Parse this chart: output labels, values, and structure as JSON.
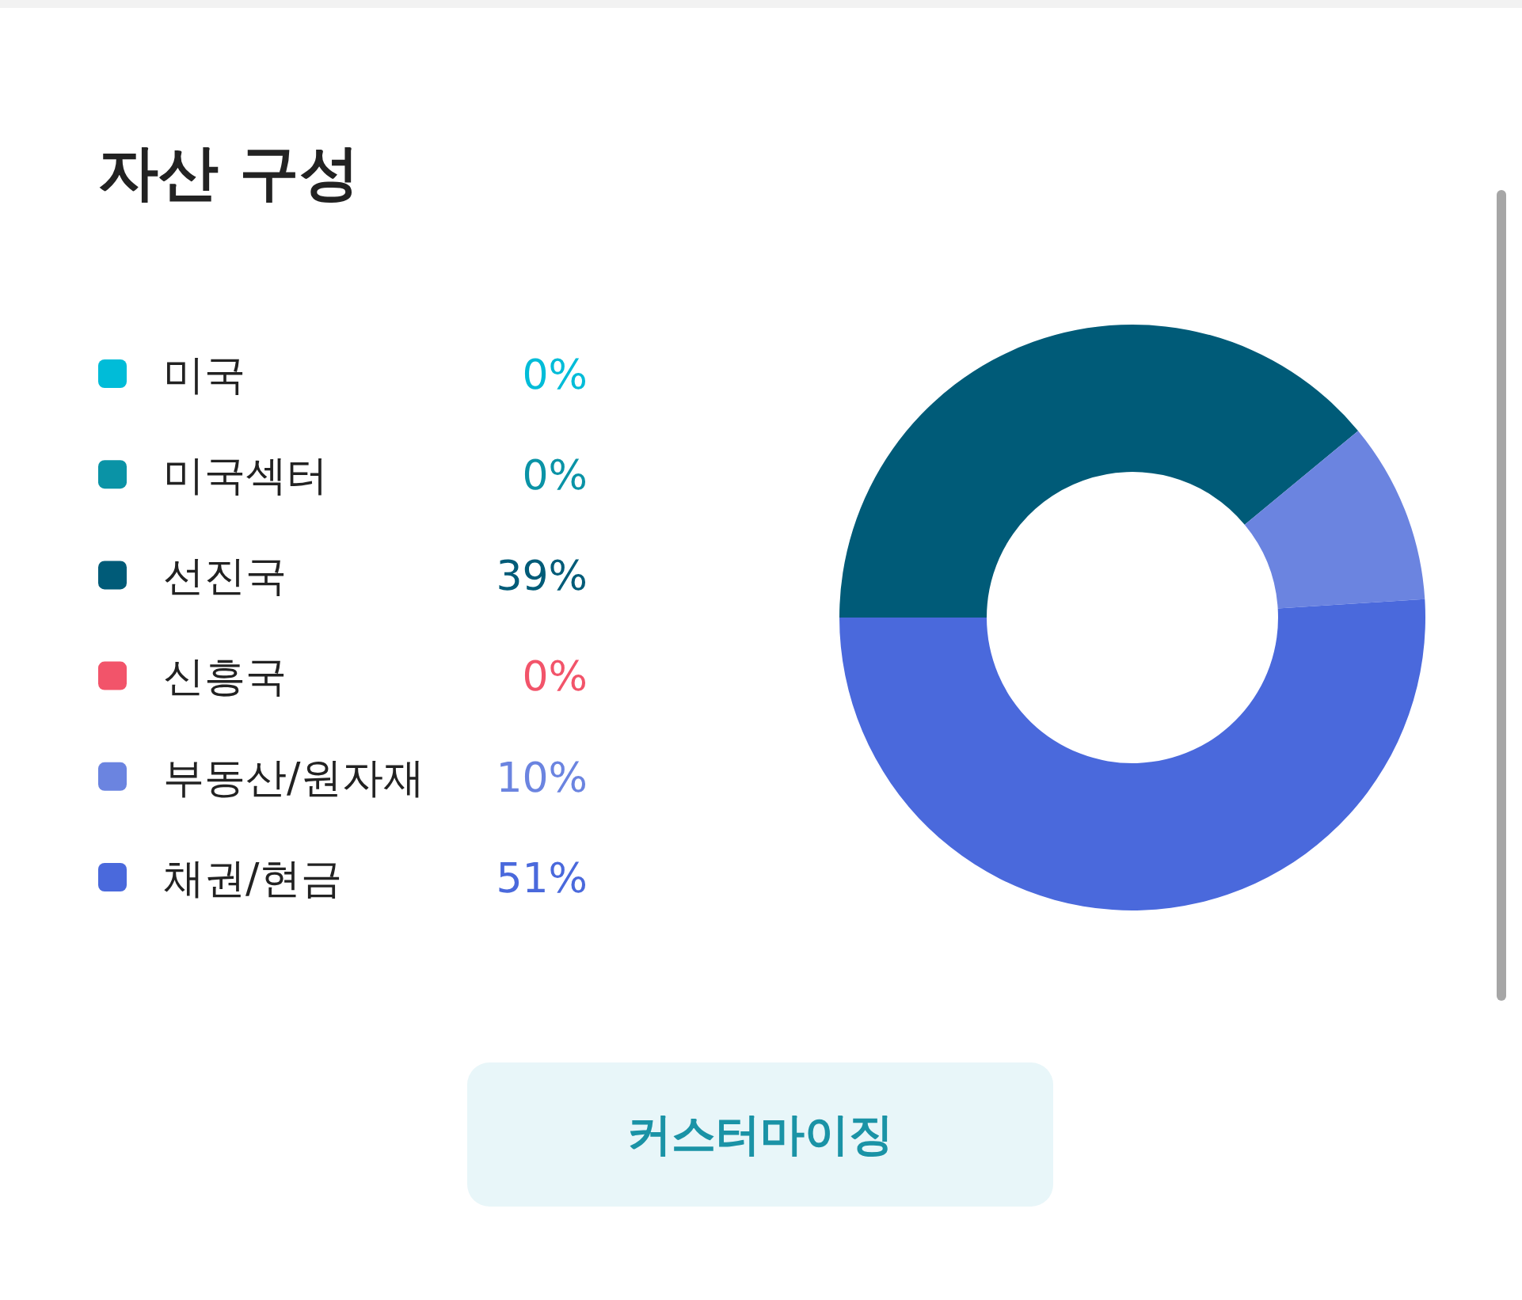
{
  "chart_data": {
    "type": "donut",
    "title": "자산 구성",
    "categories": [
      "미국",
      "미국섹터",
      "선진국",
      "신흥국",
      "부동산/원자재",
      "채권/현금"
    ],
    "values": [
      0,
      0,
      39,
      0,
      10,
      51
    ],
    "value_labels": [
      "0%",
      "0%",
      "39%",
      "0%",
      "10%",
      "51%"
    ],
    "colors": [
      "#00bcd8",
      "#0a93a6",
      "#005b78",
      "#f2546a",
      "#6b84e0",
      "#4a69dc"
    ],
    "legend": "left",
    "annotations": [
      "커스터마이징"
    ]
  }
}
